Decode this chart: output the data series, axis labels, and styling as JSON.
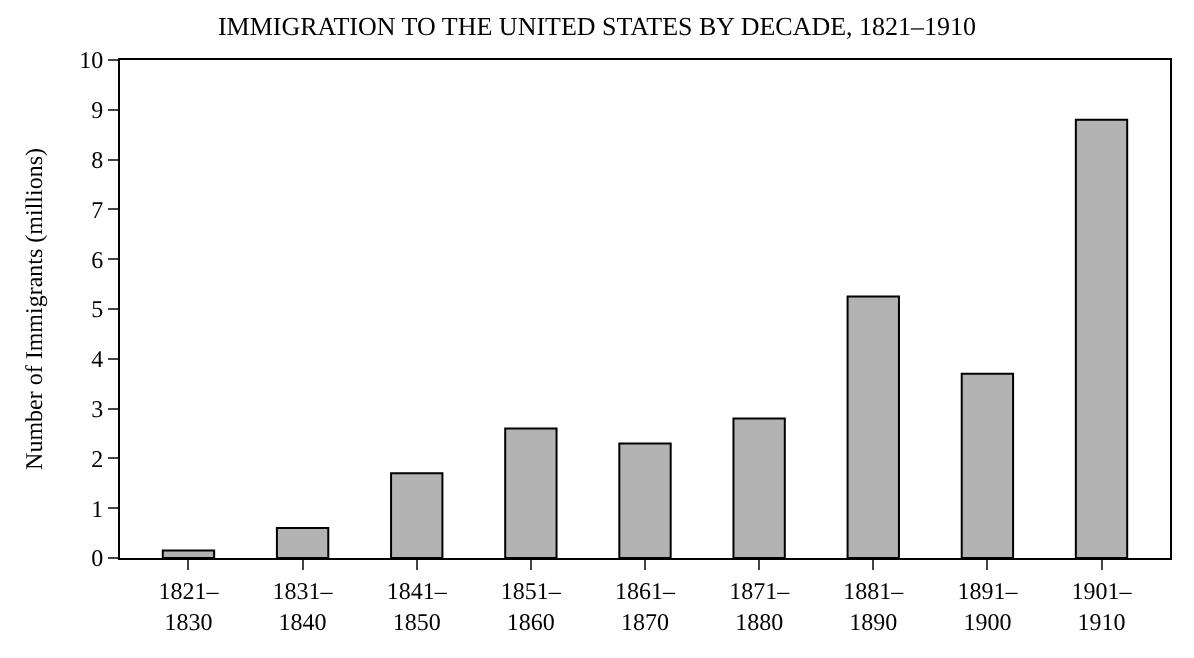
{
  "chart_data": {
    "type": "bar",
    "title": "IMMIGRATION TO THE UNITED STATES BY DECADE, 1821–1910",
    "ylabel": "Number of Immigrants (millions)",
    "categories": [
      "1821–\n1830",
      "1831–\n1840",
      "1841–\n1850",
      "1851–\n1860",
      "1861–\n1870",
      "1871–\n1880",
      "1881–\n1890",
      "1891–\n1900",
      "1901–\n1910"
    ],
    "values": [
      0.15,
      0.6,
      1.7,
      2.6,
      2.3,
      2.8,
      5.25,
      3.7,
      8.8
    ],
    "color": "#b3b3b3",
    "ylim": [
      0,
      10
    ],
    "yticks": [
      0,
      1,
      2,
      3,
      4,
      5,
      6,
      7,
      8,
      9,
      10
    ]
  }
}
